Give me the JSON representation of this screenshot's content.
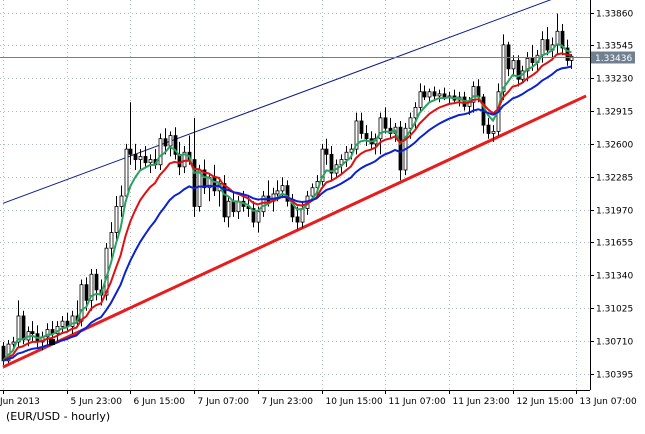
{
  "caption": "(EUR/USD - hourly)",
  "current_price_label": "1.33436",
  "colors": {
    "grid": "#b0b8c0",
    "candle": "#000000",
    "ma_fast": "#2aa260",
    "ma_mid": "#e01010",
    "ma_slow": "#0a22d0",
    "trend": "#e81c1c",
    "channel": "#0a1a8a",
    "price_line": "#708090",
    "price_label_bg": "#708090"
  },
  "chart_data": {
    "type": "candlestick",
    "instrument": "EUR/USD",
    "timeframe": "hourly",
    "ylim": [
      1.3024,
      1.3398
    ],
    "y_ticks": [
      "1.33860",
      "1.33545",
      "1.33230",
      "1.32915",
      "1.32600",
      "1.32285",
      "1.31970",
      "1.31655",
      "1.31340",
      "1.31025",
      "1.30710",
      "1.30395"
    ],
    "x_ticks": [
      "Jun 2013",
      "5 Jun 23:00",
      "6 Jun 15:00",
      "7 Jun 07:00",
      "7 Jun 23:00",
      "10 Jun 15:00",
      "11 Jun 07:00",
      "11 Jun 23:00",
      "12 Jun 15:00",
      "13 Jun 07:00"
    ],
    "x_tick_bars": [
      0,
      13,
      26,
      39,
      52,
      65,
      78,
      91,
      104,
      117
    ],
    "candles": [
      [
        1.3066,
        1.307,
        1.3048,
        1.3052
      ],
      [
        1.3052,
        1.3072,
        1.305,
        1.3068
      ],
      [
        1.3068,
        1.3075,
        1.3062,
        1.307
      ],
      [
        1.307,
        1.311,
        1.3065,
        1.3095
      ],
      [
        1.3095,
        1.31,
        1.3068,
        1.3072
      ],
      [
        1.3072,
        1.3085,
        1.3066,
        1.308
      ],
      [
        1.308,
        1.309,
        1.307,
        1.3078
      ],
      [
        1.3078,
        1.3086,
        1.3065,
        1.307
      ],
      [
        1.307,
        1.308,
        1.3062,
        1.3075
      ],
      [
        1.3075,
        1.3088,
        1.3066,
        1.3082
      ],
      [
        1.3082,
        1.309,
        1.3072,
        1.3078
      ],
      [
        1.3078,
        1.309,
        1.307,
        1.3085
      ],
      [
        1.3085,
        1.3095,
        1.3078,
        1.309
      ],
      [
        1.309,
        1.3098,
        1.308,
        1.3085
      ],
      [
        1.3085,
        1.31,
        1.3078,
        1.3095
      ],
      [
        1.3095,
        1.311,
        1.3085,
        1.309
      ],
      [
        1.309,
        1.313,
        1.3085,
        1.3125
      ],
      [
        1.3125,
        1.3132,
        1.31,
        1.311
      ],
      [
        1.311,
        1.314,
        1.31,
        1.3135
      ],
      [
        1.3135,
        1.314,
        1.311,
        1.312
      ],
      [
        1.312,
        1.313,
        1.3105,
        1.3115
      ],
      [
        1.3115,
        1.3165,
        1.311,
        1.316
      ],
      [
        1.316,
        1.3185,
        1.315,
        1.3175
      ],
      [
        1.3175,
        1.321,
        1.3165,
        1.32
      ],
      [
        1.32,
        1.322,
        1.319,
        1.321
      ],
      [
        1.321,
        1.326,
        1.3205,
        1.3255
      ],
      [
        1.3255,
        1.33,
        1.324,
        1.325
      ],
      [
        1.325,
        1.326,
        1.3235,
        1.3245
      ],
      [
        1.3245,
        1.3255,
        1.3235,
        1.3248
      ],
      [
        1.3248,
        1.3258,
        1.3238,
        1.3242
      ],
      [
        1.3242,
        1.325,
        1.3232,
        1.3245
      ],
      [
        1.3245,
        1.3255,
        1.3236,
        1.324
      ],
      [
        1.324,
        1.327,
        1.3235,
        1.3265
      ],
      [
        1.3265,
        1.3275,
        1.325,
        1.3258
      ],
      [
        1.3258,
        1.3272,
        1.3248,
        1.3268
      ],
      [
        1.3268,
        1.3276,
        1.3245,
        1.325
      ],
      [
        1.325,
        1.3262,
        1.323,
        1.3238
      ],
      [
        1.3238,
        1.3258,
        1.3232,
        1.3252
      ],
      [
        1.3252,
        1.3268,
        1.324,
        1.3245
      ],
      [
        1.3245,
        1.3285,
        1.319,
        1.32
      ],
      [
        1.32,
        1.324,
        1.3195,
        1.3235
      ],
      [
        1.3235,
        1.3245,
        1.3212,
        1.3218
      ],
      [
        1.3218,
        1.3232,
        1.3205,
        1.3228
      ],
      [
        1.3228,
        1.324,
        1.321,
        1.3215
      ],
      [
        1.3215,
        1.3228,
        1.32,
        1.3222
      ],
      [
        1.3222,
        1.323,
        1.3185,
        1.319
      ],
      [
        1.319,
        1.321,
        1.318,
        1.3205
      ],
      [
        1.3205,
        1.3215,
        1.319,
        1.3195
      ],
      [
        1.3195,
        1.321,
        1.3188,
        1.3205
      ],
      [
        1.3205,
        1.3215,
        1.3195,
        1.32
      ],
      [
        1.32,
        1.321,
        1.319,
        1.3198
      ],
      [
        1.3198,
        1.3205,
        1.318,
        1.3185
      ],
      [
        1.3185,
        1.32,
        1.3175,
        1.3195
      ],
      [
        1.3195,
        1.3215,
        1.319,
        1.321
      ],
      [
        1.321,
        1.3225,
        1.32,
        1.3205
      ],
      [
        1.3205,
        1.3218,
        1.3195,
        1.3212
      ],
      [
        1.3212,
        1.3225,
        1.3205,
        1.3215
      ],
      [
        1.3215,
        1.3228,
        1.3208,
        1.322
      ],
      [
        1.322,
        1.3225,
        1.32,
        1.3205
      ],
      [
        1.3205,
        1.3212,
        1.3185,
        1.319
      ],
      [
        1.319,
        1.32,
        1.3178,
        1.3185
      ],
      [
        1.3185,
        1.3205,
        1.318,
        1.3198
      ],
      [
        1.3198,
        1.3215,
        1.3192,
        1.321
      ],
      [
        1.321,
        1.3222,
        1.3205,
        1.3218
      ],
      [
        1.3218,
        1.323,
        1.321,
        1.3224
      ],
      [
        1.3224,
        1.326,
        1.322,
        1.3255
      ],
      [
        1.3255,
        1.3265,
        1.324,
        1.325
      ],
      [
        1.325,
        1.3258,
        1.3225,
        1.3232
      ],
      [
        1.3232,
        1.3245,
        1.3228,
        1.324
      ],
      [
        1.324,
        1.325,
        1.323,
        1.3245
      ],
      [
        1.3245,
        1.3258,
        1.3238,
        1.3252
      ],
      [
        1.3252,
        1.326,
        1.3245,
        1.3255
      ],
      [
        1.3255,
        1.329,
        1.325,
        1.3282
      ],
      [
        1.3282,
        1.329,
        1.3265,
        1.327
      ],
      [
        1.327,
        1.3278,
        1.3258,
        1.3265
      ],
      [
        1.3265,
        1.3272,
        1.3255,
        1.326
      ],
      [
        1.326,
        1.327,
        1.325,
        1.3265
      ],
      [
        1.3265,
        1.329,
        1.325,
        1.3285
      ],
      [
        1.3285,
        1.3295,
        1.327,
        1.3275
      ],
      [
        1.3275,
        1.3285,
        1.3265,
        1.327
      ],
      [
        1.327,
        1.328,
        1.3262,
        1.3276
      ],
      [
        1.3276,
        1.3282,
        1.3225,
        1.3235
      ],
      [
        1.3235,
        1.328,
        1.323,
        1.3275
      ],
      [
        1.3275,
        1.329,
        1.3265,
        1.3285
      ],
      [
        1.3285,
        1.33,
        1.3275,
        1.3295
      ],
      [
        1.3295,
        1.3318,
        1.329,
        1.331
      ],
      [
        1.331,
        1.3316,
        1.3302,
        1.3305
      ],
      [
        1.3305,
        1.3313,
        1.33,
        1.331
      ],
      [
        1.331,
        1.3315,
        1.3302,
        1.3306
      ],
      [
        1.3306,
        1.3312,
        1.33,
        1.3308
      ],
      [
        1.3308,
        1.3314,
        1.3302,
        1.3304
      ],
      [
        1.3304,
        1.331,
        1.3298,
        1.3306
      ],
      [
        1.3306,
        1.3312,
        1.33,
        1.3302
      ],
      [
        1.3302,
        1.331,
        1.3296,
        1.3305
      ],
      [
        1.3305,
        1.331,
        1.3292,
        1.3296
      ],
      [
        1.3296,
        1.3305,
        1.3288,
        1.33
      ],
      [
        1.33,
        1.332,
        1.329,
        1.3315
      ],
      [
        1.3315,
        1.3322,
        1.33,
        1.3305
      ],
      [
        1.3305,
        1.3308,
        1.327,
        1.3278
      ],
      [
        1.3278,
        1.3285,
        1.3265,
        1.327
      ],
      [
        1.327,
        1.3278,
        1.3262,
        1.3272
      ],
      [
        1.3272,
        1.3318,
        1.3268,
        1.331
      ],
      [
        1.331,
        1.3365,
        1.3302,
        1.3355
      ],
      [
        1.3355,
        1.3358,
        1.3325,
        1.3332
      ],
      [
        1.3332,
        1.3345,
        1.3325,
        1.334
      ],
      [
        1.334,
        1.3345,
        1.3315,
        1.3322
      ],
      [
        1.3322,
        1.3335,
        1.3318,
        1.333
      ],
      [
        1.333,
        1.3348,
        1.332,
        1.3342
      ],
      [
        1.3342,
        1.3355,
        1.333,
        1.3338
      ],
      [
        1.3338,
        1.335,
        1.333,
        1.3345
      ],
      [
        1.3345,
        1.3368,
        1.3338,
        1.336
      ],
      [
        1.336,
        1.3372,
        1.3345,
        1.335
      ],
      [
        1.335,
        1.3362,
        1.334,
        1.3355
      ],
      [
        1.3355,
        1.3385,
        1.3345,
        1.3368
      ],
      [
        1.3368,
        1.3375,
        1.3345,
        1.3352
      ],
      [
        1.3352,
        1.336,
        1.3335,
        1.334
      ],
      [
        1.334,
        1.3346,
        1.3332,
        1.3344
      ]
    ],
    "ma_periods": [
      5,
      10,
      20
    ],
    "trendline": {
      "from": [
        0,
        1.3046
      ],
      "to": [
        119,
        1.3306
      ]
    },
    "channel_line": {
      "from": [
        0,
        1.3203
      ],
      "to": [
        119,
        1.34
      ]
    },
    "current_price": 1.33436
  }
}
